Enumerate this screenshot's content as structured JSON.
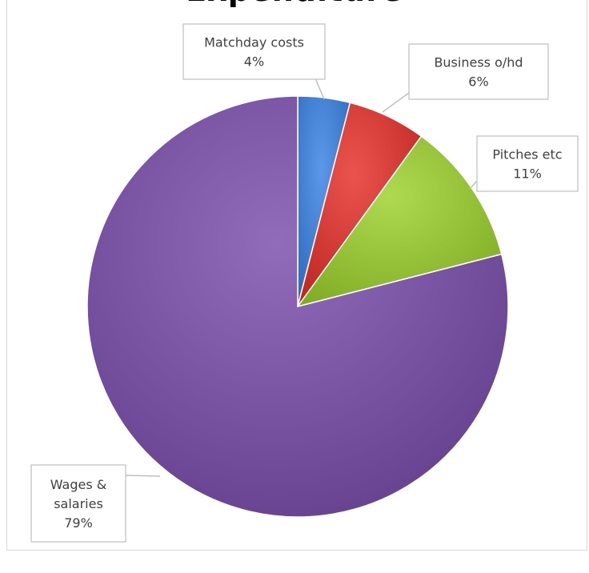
{
  "chart_data": {
    "type": "pie",
    "title": "Expenditure",
    "slices": [
      {
        "label_lines": [
          "Matchday costs"
        ],
        "value": 4,
        "value_text": "4%",
        "color": "#4a86d8"
      },
      {
        "label_lines": [
          "Business o/hd"
        ],
        "value": 6,
        "value_text": "6%",
        "color": "#d9413d"
      },
      {
        "label_lines": [
          "Pitches etc"
        ],
        "value": 11,
        "value_text": "11%",
        "color": "#9bc83f"
      },
      {
        "label_lines": [
          "Wages &",
          "salaries"
        ],
        "value": 79,
        "value_text": "79%",
        "color": "#7f5aa8"
      }
    ],
    "start_angle_deg": 0,
    "direction": "clockwise",
    "legend": "none",
    "data_labels": "callouts"
  }
}
